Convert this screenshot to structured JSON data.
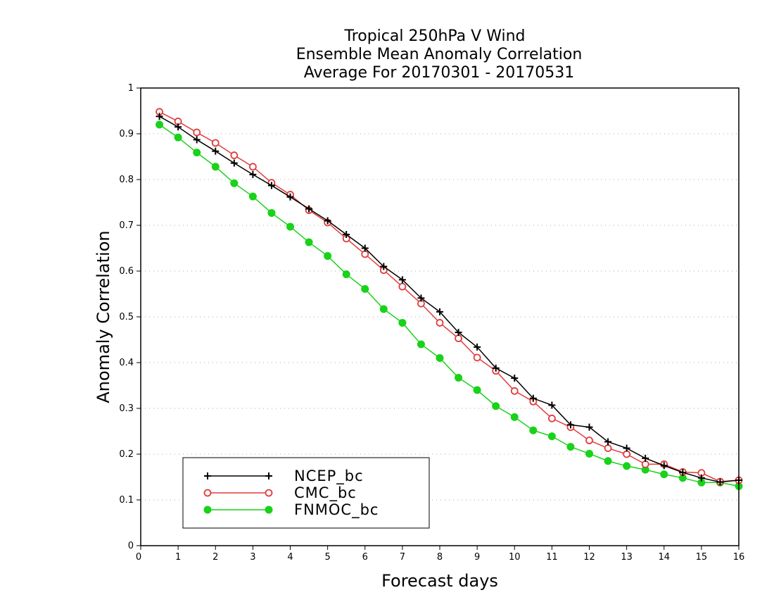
{
  "colors": {
    "background": "#ffffff",
    "axis": "#000000",
    "grid": "#aaaaaa",
    "NCEP_bc": "#000000",
    "CMC_bc": "#e23c3c",
    "FNMOC_bc": "#19d219"
  },
  "chart_data": {
    "type": "line",
    "title_lines": [
      "Tropical 250hPa V Wind",
      "Ensemble Mean Anomaly Correlation",
      "Average For 20170301 - 20170531"
    ],
    "xlabel": "Forecast days",
    "ylabel": "Anomaly Correlation",
    "xlim": [
      0,
      16
    ],
    "ylim": [
      0,
      1
    ],
    "x_ticks": [
      "0",
      "1",
      "2",
      "3",
      "4",
      "5",
      "6",
      "7",
      "8",
      "9",
      "10",
      "11",
      "12",
      "13",
      "14",
      "15",
      "16"
    ],
    "y_ticks": [
      "0",
      "0.1",
      "0.2",
      "0.3",
      "0.4",
      "0.5",
      "0.6",
      "0.7",
      "0.8",
      "0.9",
      "1"
    ],
    "grid": "horizontal dotted",
    "legend_position": "bottom-left",
    "x": [
      0.5,
      1,
      1.5,
      2,
      2.5,
      3,
      3.5,
      4,
      4.5,
      5,
      5.5,
      6,
      6.5,
      7,
      7.5,
      8,
      8.5,
      9,
      9.5,
      10,
      10.5,
      11,
      11.5,
      12,
      12.5,
      13,
      13.5,
      14,
      14.5,
      15,
      15.5,
      16
    ],
    "series": [
      {
        "name": "NCEP_bc",
        "marker": "plus",
        "values": [
          0.938,
          0.915,
          0.887,
          0.862,
          0.836,
          0.811,
          0.787,
          0.762,
          0.736,
          0.71,
          0.68,
          0.65,
          0.61,
          0.581,
          0.541,
          0.511,
          0.466,
          0.434,
          0.388,
          0.366,
          0.322,
          0.307,
          0.264,
          0.259,
          0.227,
          0.213,
          0.191,
          0.175,
          0.16,
          0.148,
          0.139,
          0.143
        ]
      },
      {
        "name": "CMC_bc",
        "marker": "open-circle",
        "values": [
          0.948,
          0.927,
          0.903,
          0.88,
          0.853,
          0.828,
          0.793,
          0.767,
          0.733,
          0.706,
          0.671,
          0.637,
          0.602,
          0.566,
          0.529,
          0.487,
          0.453,
          0.411,
          0.382,
          0.338,
          0.315,
          0.278,
          0.259,
          0.23,
          0.213,
          0.2,
          0.178,
          0.178,
          0.161,
          0.159,
          0.14,
          0.143
        ]
      },
      {
        "name": "FNMOC_bc",
        "marker": "filled-circle",
        "values": [
          0.92,
          0.892,
          0.859,
          0.828,
          0.792,
          0.763,
          0.727,
          0.697,
          0.663,
          0.633,
          0.593,
          0.561,
          0.517,
          0.487,
          0.44,
          0.41,
          0.367,
          0.34,
          0.305,
          0.281,
          0.252,
          0.239,
          0.216,
          0.201,
          0.185,
          0.174,
          0.166,
          0.156,
          0.148,
          0.138,
          0.138,
          0.13
        ]
      }
    ]
  }
}
